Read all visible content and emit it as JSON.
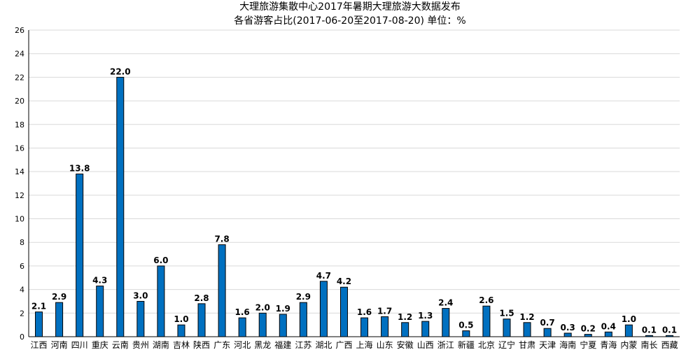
{
  "chart_data": {
    "type": "bar",
    "title": "大理旅游集散中心2017年暑期大理旅游大数据发布",
    "subtitle": "各省游客占比(2017-06-20至2017-08-20) 单位：%",
    "categories": [
      "江西",
      "河南",
      "四川",
      "重庆",
      "云南",
      "贵州",
      "湖南",
      "吉林",
      "陕西",
      "广东",
      "河北",
      "黑龙",
      "福建",
      "江苏",
      "湖北",
      "广西",
      "上海",
      "山东",
      "安徽",
      "山西",
      "浙江",
      "新疆",
      "北京",
      "辽宁",
      "甘肃",
      "天津",
      "海南",
      "宁夏",
      "青海",
      "内蒙",
      "南长",
      "西藏"
    ],
    "values": [
      2.1,
      2.9,
      13.8,
      4.3,
      22.0,
      3.0,
      6.0,
      1.0,
      2.8,
      7.8,
      1.6,
      2.0,
      1.9,
      2.9,
      4.7,
      4.2,
      1.6,
      1.7,
      1.2,
      1.3,
      2.4,
      0.5,
      2.6,
      1.5,
      1.2,
      0.7,
      0.3,
      0.2,
      0.4,
      1.0,
      0.1,
      0.1
    ],
    "ylim": [
      0,
      26
    ],
    "yticks": [
      0,
      2,
      4,
      6,
      8,
      10,
      12,
      14,
      16,
      18,
      20,
      22,
      24,
      26
    ],
    "grid": true,
    "bar_color": "#0070C0"
  }
}
